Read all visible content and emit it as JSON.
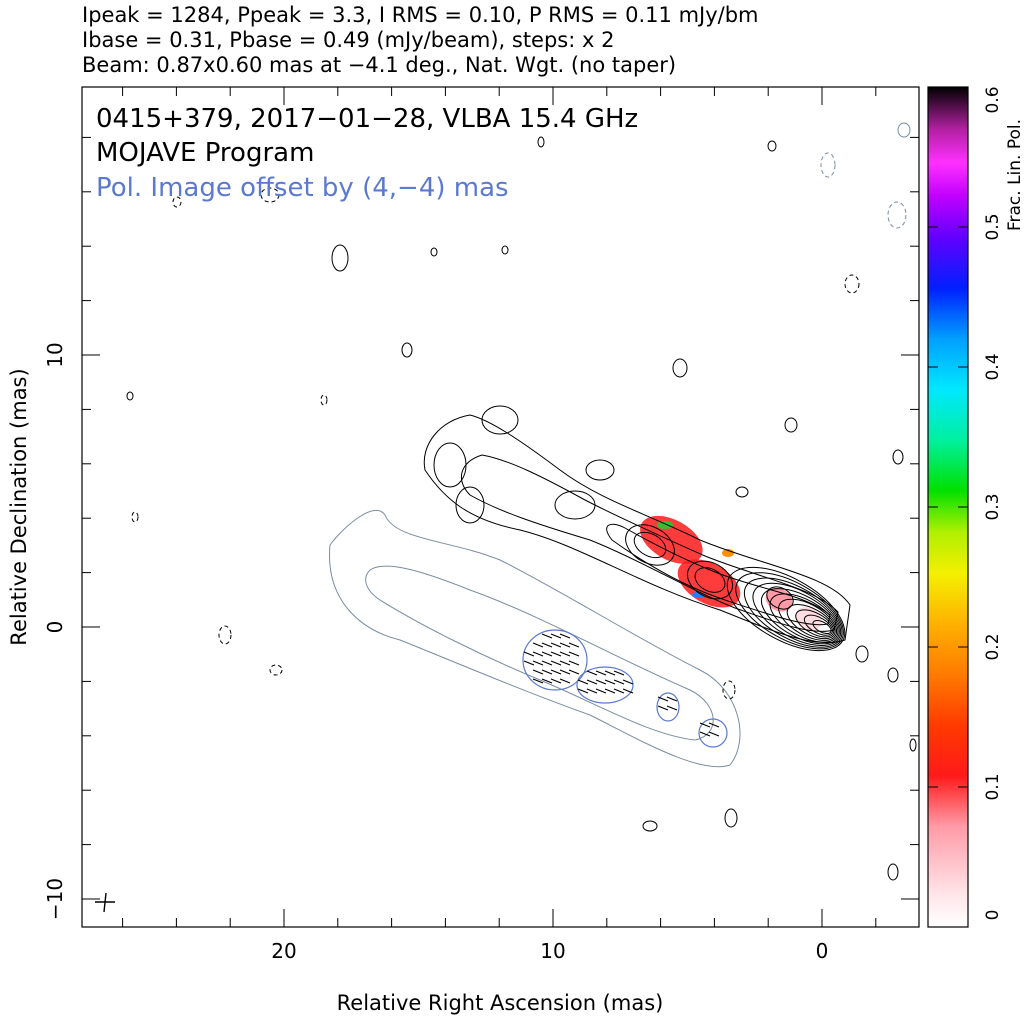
{
  "header": {
    "line1": "Ipeak = 1284, Ppeak = 3.3, I RMS = 0.10, P RMS = 0.11 mJy/bm",
    "line2": "Ibase = 0.31, Pbase = 0.49 (mJy/beam), steps: x 2",
    "line3": "Beam: 0.87x0.60 mas at −4.1 deg., Nat. Wgt. (no taper)"
  },
  "chart_data": {
    "type": "contour",
    "xlabel": "Relative Right Ascension (mas)",
    "ylabel": "Relative Declination (mas)",
    "xlim": [
      27.5,
      -3.5
    ],
    "ylim": [
      -11,
      20
    ],
    "xticks": [
      20,
      10,
      0
    ],
    "yticks": [
      10,
      0,
      -10
    ],
    "annotations": {
      "source": "0415+379, 2017−01−28, VLBA 15.4 GHz",
      "program": "MOJAVE Program",
      "offset_note": "Pol. Image offset by (4,−4) mas"
    },
    "colorbar": {
      "label": "Frac. Lin. Pol.",
      "min": 0,
      "max": 0.6,
      "ticks": [
        0,
        0.1,
        0.2,
        0.3,
        0.4,
        0.5,
        0.6
      ],
      "tick_labels": [
        "0",
        "0.1",
        "0.2",
        "0.3",
        "0.4",
        "0.5",
        "0.6"
      ]
    },
    "stokes_i": {
      "core": [
        0,
        0
      ],
      "peak_mjy_per_beam": 1284,
      "base_mjy_per_beam": 0.31,
      "levels_factor": 2,
      "jet_ridge": [
        [
          0,
          0
        ],
        [
          2,
          1
        ],
        [
          4,
          2.2
        ],
        [
          6,
          3.2
        ],
        [
          8,
          4
        ],
        [
          10,
          4.6
        ],
        [
          12,
          5.4
        ],
        [
          14,
          6
        ]
      ]
    },
    "polarization": {
      "offset_mas": [
        4,
        -4
      ],
      "peak_mjy_per_beam": 3.3,
      "base_mjy_per_beam": 0.49,
      "frac_pol_regions": [
        {
          "x": 5.6,
          "y": 3.2,
          "frac": 0.12
        },
        {
          "x": 4.2,
          "y": 1.6,
          "frac": 0.1
        },
        {
          "x": 1.6,
          "y": 1.0,
          "frac": 0.05
        },
        {
          "x": 0.5,
          "y": 0.3,
          "frac": 0.02
        }
      ]
    },
    "beam": {
      "major_mas": 0.87,
      "minor_mas": 0.6,
      "pa_deg": -4.1
    }
  }
}
